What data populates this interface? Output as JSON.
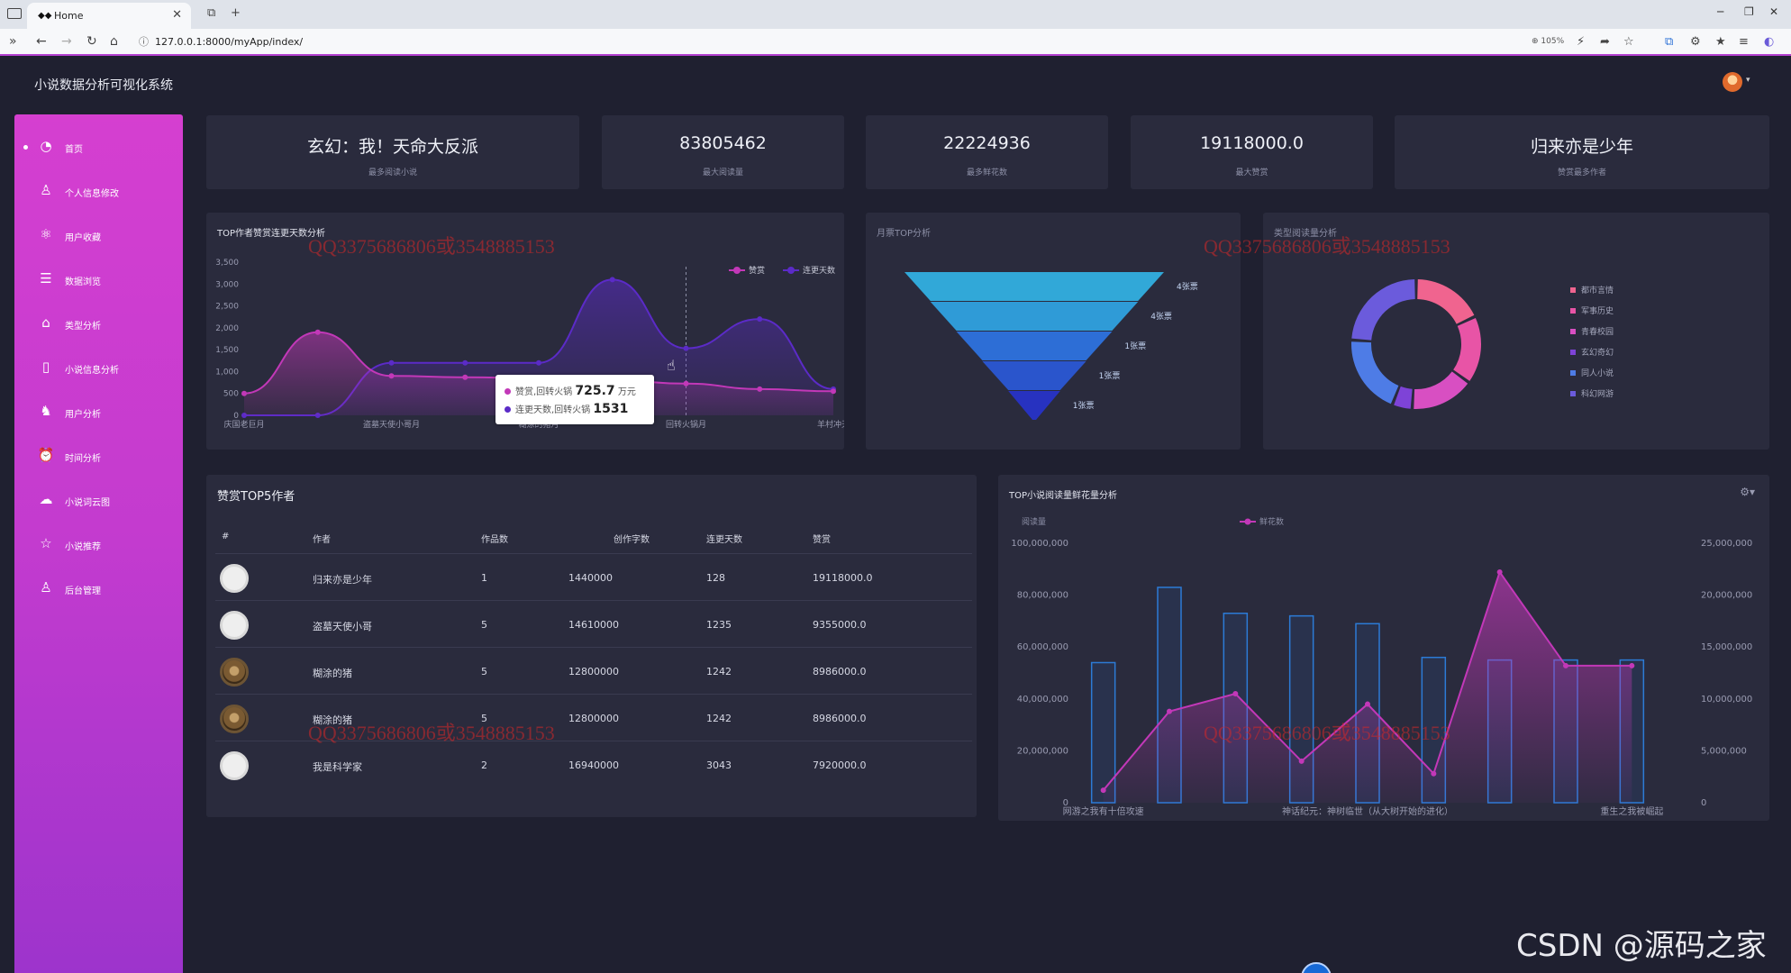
{
  "browser": {
    "tab_title": "Home",
    "url": "127.0.0.1:8000/myApp/index/",
    "zoom": "105%"
  },
  "app": {
    "title": "小说数据分析可视化系统"
  },
  "sidebar": {
    "items": [
      {
        "label": "首页",
        "icon": "clock-icon",
        "active": true
      },
      {
        "label": "个人信息修改",
        "icon": "user-icon"
      },
      {
        "label": "用户收藏",
        "icon": "atom-icon"
      },
      {
        "label": "数据浏览",
        "icon": "list-icon"
      },
      {
        "label": "类型分析",
        "icon": "tag-icon"
      },
      {
        "label": "小说信息分析",
        "icon": "book-icon"
      },
      {
        "label": "用户分析",
        "icon": "running-icon"
      },
      {
        "label": "时间分析",
        "icon": "alarm-icon"
      },
      {
        "label": "小说词云图",
        "icon": "cloud-upload-icon"
      },
      {
        "label": "小说推荐",
        "icon": "star-icon"
      },
      {
        "label": "后台管理",
        "icon": "admin-user-icon"
      }
    ]
  },
  "stats": [
    {
      "value": "玄幻：我！天命大反派",
      "label": "最多阅读小说"
    },
    {
      "value": "83805462",
      "label": "最大阅读量"
    },
    {
      "value": "22224936",
      "label": "最多鲜花数"
    },
    {
      "value": "19118000.0",
      "label": "最大赞赏"
    },
    {
      "value": "归来亦是少年",
      "label": "赞赏最多作者"
    }
  ],
  "watermark": "QQ3375686806或3548885153",
  "area_chart": {
    "title": "TOP作者赞赏连更天数分析",
    "tooltip": {
      "line1": "赞赏,回转火锅",
      "line1_value": "725.7",
      "line1_unit": "万元",
      "line2": "连更天数,回转火锅",
      "line2_value": "1531"
    }
  },
  "funnel_chart": {
    "title": "月票TOP分析"
  },
  "donut_chart": {
    "title": "类型阅读量分析"
  },
  "table": {
    "title": "赞赏TOP5作者",
    "headers": [
      "#",
      "作者",
      "作品数",
      "创作字数",
      "连更天数",
      "赞赏"
    ],
    "rows": [
      {
        "author": "归来亦是少年",
        "works": "1",
        "words": "1440000",
        "days": "128",
        "reward": "19118000.0",
        "avatar": "plain"
      },
      {
        "author": "盗墓天使小哥",
        "works": "5",
        "words": "14610000",
        "days": "1235",
        "reward": "9355000.0",
        "avatar": "plain"
      },
      {
        "author": "糊涂的猪",
        "works": "5",
        "words": "12800000",
        "days": "1242",
        "reward": "8986000.0",
        "avatar": "pig"
      },
      {
        "author": "糊涂的猪",
        "works": "5",
        "words": "12800000",
        "days": "1242",
        "reward": "8986000.0",
        "avatar": "pig"
      },
      {
        "author": "我是科学家",
        "works": "2",
        "words": "16940000",
        "days": "3043",
        "reward": "7920000.0",
        "avatar": "plain"
      }
    ]
  },
  "bar_line_chart": {
    "title": "TOP小说阅读量鲜花量分析"
  },
  "footer": {
    "csdn": "CSDN @源码之家"
  },
  "chart_data": [
    {
      "type": "area",
      "title": "TOP作者赞赏连更天数分析",
      "legend": [
        "赞赏",
        "连更天数"
      ],
      "legend_position": "top-right",
      "categories": [
        "庆国老巨月",
        "",
        "盗墓天使小哥月",
        "",
        "糊涂的猪月",
        "",
        "回转火锅月",
        "",
        "羊村冲天"
      ],
      "ylim": [
        0,
        3500
      ],
      "yticks": [
        0,
        500,
        1000,
        1500,
        2000,
        2500,
        3000,
        3500
      ],
      "series": [
        {
          "name": "赞赏",
          "color": "#c238b8",
          "values": [
            500,
            1900,
            900,
            870,
            850,
            800,
            725.7,
            600,
            550
          ]
        },
        {
          "name": "连更天数",
          "color": "#5b2bc7",
          "values": [
            0,
            0,
            1200,
            1200,
            1200,
            3100,
            1531,
            2200,
            600
          ]
        }
      ]
    },
    {
      "type": "funnel",
      "title": "月票TOP分析",
      "stages": [
        {
          "label": "4张票",
          "value": 5,
          "color": "#31a8d8"
        },
        {
          "label": "4张票",
          "value": 4,
          "color": "#2f9bd7"
        },
        {
          "label": "1张票",
          "value": 3,
          "color": "#2d6ed6"
        },
        {
          "label": "1张票",
          "value": 2,
          "color": "#2a55cc"
        },
        {
          "label": "1张票",
          "value": 1,
          "color": "#2732c0"
        }
      ]
    },
    {
      "type": "pie",
      "title": "类型阅读量分析",
      "legend_position": "right",
      "slices": [
        {
          "label": "都市言情",
          "value": 18,
          "color": "#f0648f"
        },
        {
          "label": "军事历史",
          "value": 17,
          "color": "#e854a6"
        },
        {
          "label": "青春校园",
          "value": 16,
          "color": "#d84fc2"
        },
        {
          "label": "玄幻奇幻",
          "value": 5,
          "color": "#7e43d7"
        },
        {
          "label": "同人小说",
          "value": 20,
          "color": "#4e7ce6"
        },
        {
          "label": "科幻网游",
          "value": 24,
          "color": "#6b5bdc"
        }
      ]
    },
    {
      "type": "bar",
      "title": "TOP小说阅读量鲜花量分析",
      "legend": [
        "阅读量",
        "鲜花数"
      ],
      "categories": [
        "网游之我有十倍攻速",
        "",
        "",
        "",
        "神话纪元：神树临世（从大树开始的进化）",
        "",
        "",
        "",
        "重生之我被崛起"
      ],
      "series": [
        {
          "name": "阅读量",
          "type": "bar",
          "axis": "left",
          "values": [
            54000000,
            83000000,
            73000000,
            72000000,
            69000000,
            56000000,
            55000000,
            55000000,
            55000000
          ]
        },
        {
          "name": "鲜花数",
          "type": "line",
          "axis": "right",
          "color": "#c238b8",
          "values": [
            1200000,
            8800000,
            10500000,
            4000000,
            9500000,
            2800000,
            22224936,
            13200000,
            13200000
          ]
        }
      ],
      "ylim_left": [
        0,
        100000000
      ],
      "yticks_left": [
        "0",
        "20,000,000",
        "40,000,000",
        "60,000,000",
        "80,000,000",
        "100,000,000"
      ],
      "ylim_right": [
        0,
        25000000
      ],
      "yticks_right": [
        "0",
        "5,000,000",
        "10,000,000",
        "15,000,000",
        "20,000,000",
        "25,000,000"
      ]
    }
  ]
}
